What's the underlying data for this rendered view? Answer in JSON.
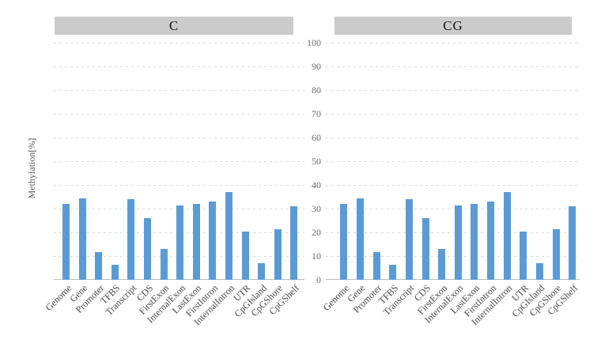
{
  "chart_data": {
    "type": "bar",
    "title": "",
    "layout": "two side-by-side facet panels with shared center y tick labels, no legend",
    "categories": [
      "Genome",
      "Gene",
      "Promoter",
      "TFBS",
      "Transcript",
      "CDS",
      "FirstExon",
      "InternalExon",
      "LastExon",
      "FirstIntron",
      "InternalIntron",
      "UTR",
      "CpGIsland",
      "CpGShore",
      "CpGShelf"
    ],
    "series": [
      {
        "name": "C",
        "values": [
          32.0,
          34.2,
          11.8,
          6.2,
          34.1,
          26.0,
          13.0,
          31.4,
          32.1,
          33.0,
          37.1,
          20.3,
          7.1,
          21.4,
          31.1
        ]
      },
      {
        "name": "CG",
        "values": [
          32.0,
          34.2,
          11.8,
          6.2,
          34.1,
          26.0,
          13.0,
          31.4,
          32.1,
          33.0,
          37.1,
          20.3,
          7.1,
          21.4,
          31.1
        ]
      }
    ],
    "xlabel": "",
    "ylabel": "Methylation[%]",
    "ylim": [
      0,
      100
    ],
    "yticks": [
      0,
      10,
      20,
      30,
      40,
      50,
      60,
      70,
      80,
      90,
      100
    ],
    "grid": "horizontal-dashed",
    "legend": "none",
    "colors": {
      "bar": "#5b9bd5",
      "panel_header_bg": "#cbcbcb",
      "gridline": "#d9d9d9",
      "axis_line": "#bcbcbc",
      "tick_text": "#6b6b6b",
      "category_text": "#4a4a4a",
      "header_text": "#141414"
    }
  }
}
